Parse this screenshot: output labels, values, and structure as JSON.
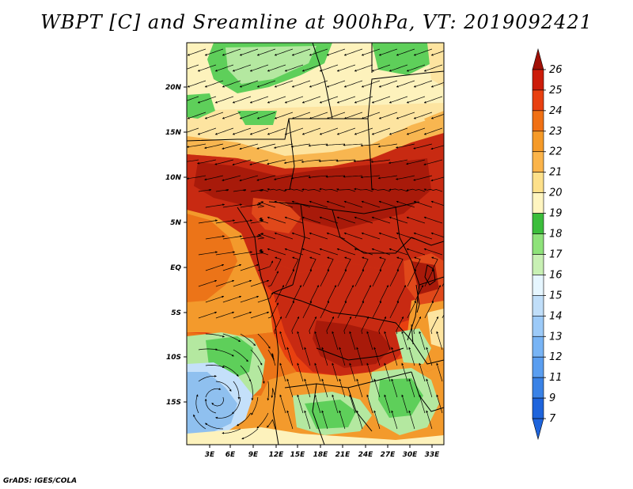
{
  "title": "WBPT [C] and Sreamline at 900hPa, VT: 2019092421",
  "credit": "GrADS: IGES/COLA",
  "map": {
    "lat_labels": [
      "20N",
      "15N",
      "10N",
      "5N",
      "EQ",
      "5S",
      "10S",
      "15S"
    ],
    "lon_labels": [
      "3E",
      "6E",
      "9E",
      "12E",
      "15E",
      "18E",
      "21E",
      "24E",
      "27E",
      "30E",
      "33E"
    ]
  },
  "colorbar": {
    "levels": [
      "7",
      "9",
      "11",
      "12",
      "13",
      "14",
      "15",
      "16",
      "17",
      "18",
      "19",
      "20",
      "21",
      "22",
      "23",
      "24",
      "25",
      "26"
    ],
    "colors": [
      "#1e64dc",
      "#3a82e6",
      "#5a9ef0",
      "#78b4f5",
      "#9ccaf8",
      "#c0def9",
      "#e6f6ff",
      "#c8f0b4",
      "#8ee27a",
      "#3cbe3c",
      "#fff5c0",
      "#fde08a",
      "#fbb44a",
      "#f59a28",
      "#f07014",
      "#e84010",
      "#cc1c0a",
      "#a01006"
    ]
  },
  "palette": {
    "blue": "#8fc0ef",
    "pale_blue": "#c4e0fa",
    "light_green": "#b4e8a0",
    "green": "#5ecf5a",
    "dark_green": "#2fb035",
    "cream": "#fdf2bc",
    "light_yellow": "#fde4a0",
    "orange_light": "#f8b650",
    "orange": "#f39a2c",
    "orange_dark": "#ec7418",
    "red_orange": "#e0481a",
    "red": "#c82a12",
    "dark_red": "#a81a0a"
  }
}
